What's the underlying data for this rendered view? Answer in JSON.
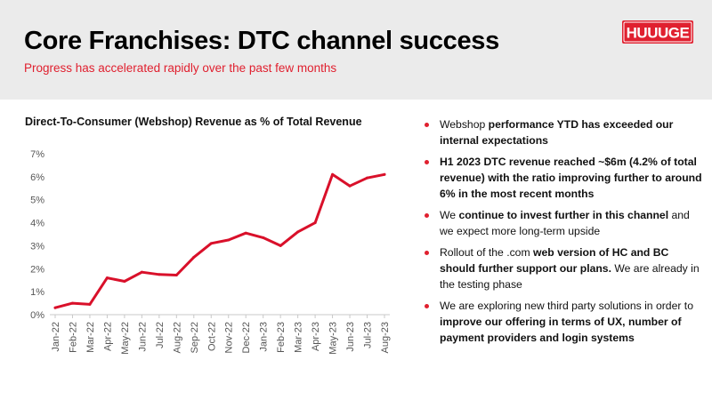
{
  "slide": {
    "title": "Core Franchises: DTC channel success",
    "subtitle": "Progress has accelerated rapidly over the past few months",
    "logo_text": "HUUUGE"
  },
  "colors": {
    "accent": "#e0202f",
    "header_bg": "#ebebeb",
    "line": "#d9102a"
  },
  "bullets": [
    [
      {
        "text": "Webshop ",
        "bold": false
      },
      {
        "text": "performance YTD has exceeded our internal expectations",
        "bold": true
      }
    ],
    [
      {
        "text": "H1 2023 DTC revenue reached ~$6m (4.2% of total revenue) with the ratio improving further to around 6% in the most recent months",
        "bold": true
      }
    ],
    [
      {
        "text": "We ",
        "bold": false
      },
      {
        "text": "continue to invest further in this channel",
        "bold": true
      },
      {
        "text": " and we expect more long-term upside",
        "bold": false
      }
    ],
    [
      {
        "text": "Rollout of the .com ",
        "bold": false
      },
      {
        "text": "web version of HC and BC should further support our plans.",
        "bold": true
      },
      {
        "text": " We are already in the testing phase",
        "bold": false
      }
    ],
    [
      {
        "text": "We are exploring new third party solutions in order to ",
        "bold": false
      },
      {
        "text": "improve our offering in terms of UX, number of payment providers and login systems",
        "bold": true
      }
    ]
  ],
  "chart_data": {
    "type": "line",
    "title": "Direct-To-Consumer (Webshop) Revenue as % of Total Revenue",
    "xlabel": "",
    "ylabel": "",
    "categories": [
      "Jan-22",
      "Feb-22",
      "Mar-22",
      "Apr-22",
      "May-22",
      "Jun-22",
      "Jul-22",
      "Aug-22",
      "Sep-22",
      "Oct-22",
      "Nov-22",
      "Dec-22",
      "Jan-23",
      "Feb-23",
      "Mar-23",
      "Apr-23",
      "May-23",
      "Jun-23",
      "Jul-23",
      "Aug-23"
    ],
    "series": [
      {
        "values": [
          0.3,
          0.5,
          0.45,
          1.6,
          1.45,
          1.85,
          1.75,
          1.72,
          2.5,
          3.1,
          3.25,
          3.55,
          3.35,
          3.0,
          3.6,
          4.0,
          6.1,
          5.6,
          5.95,
          6.1
        ]
      }
    ],
    "ylim": [
      0,
      7
    ],
    "yticks": [
      0,
      1,
      2,
      3,
      4,
      5,
      6,
      7
    ],
    "ytick_labels": [
      "0%",
      "1%",
      "2%",
      "3%",
      "4%",
      "5%",
      "6%",
      "7%"
    ],
    "grid": false,
    "legend": "none"
  }
}
